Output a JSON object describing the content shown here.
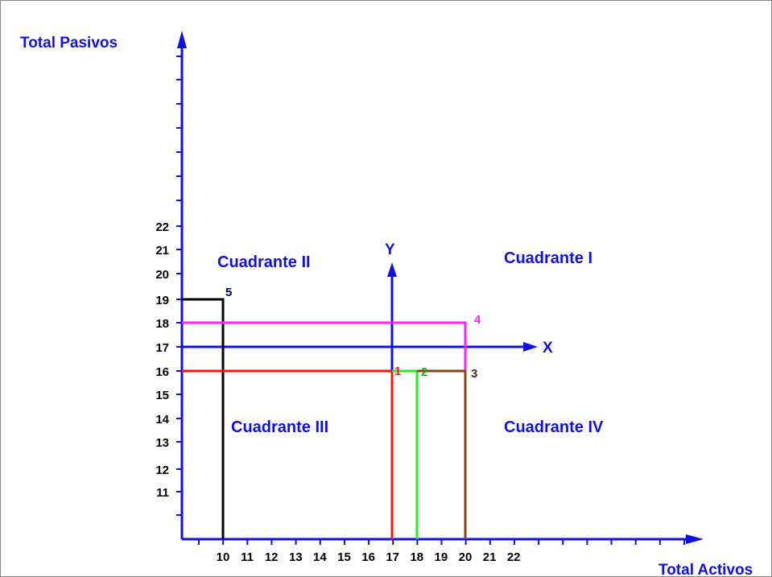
{
  "axes": {
    "y_title": "Total Pasivos",
    "x_title": "Total Activos",
    "inner_x": "X",
    "inner_y": "Y"
  },
  "x_tick_labels": [
    "10",
    "11",
    "12",
    "13",
    "14",
    "15",
    "16",
    "17",
    "18",
    "19",
    "20",
    "21",
    "22"
  ],
  "y_tick_labels": [
    "22",
    "21",
    "20",
    "19",
    "18",
    "17",
    "16",
    "15",
    "14",
    "13",
    "12",
    "11"
  ],
  "quadrants": [
    "Cuadrante I",
    "Cuadrante II",
    "Cuadrante III",
    "Cuadrante IV"
  ],
  "points": [
    "1",
    "2",
    "3",
    "4",
    "5"
  ]
}
